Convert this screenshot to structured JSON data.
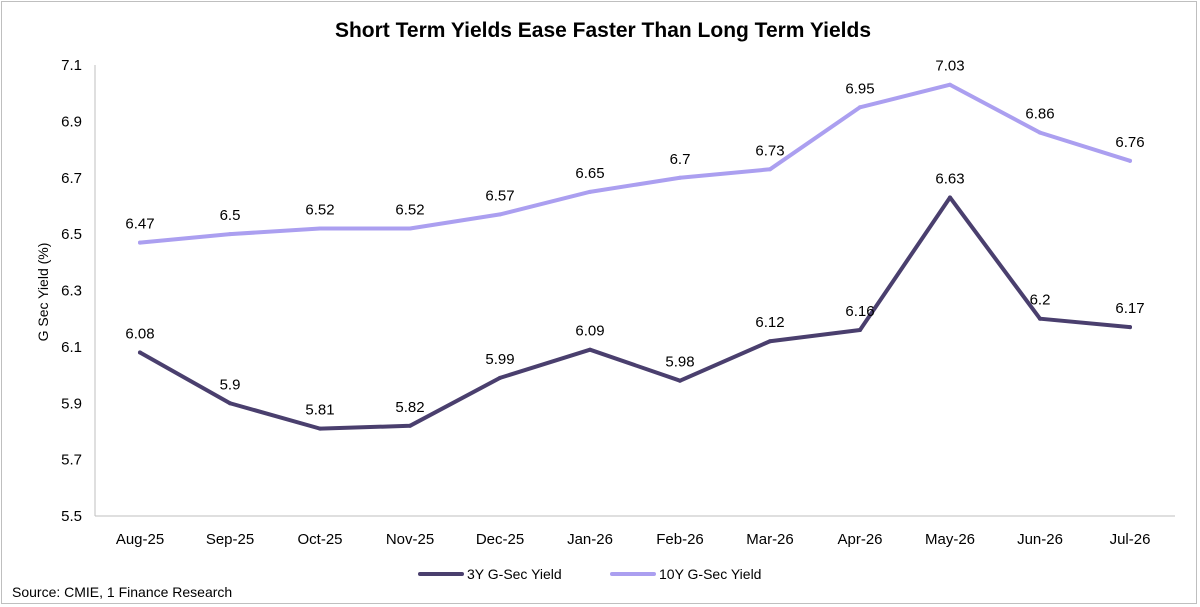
{
  "chart_data": {
    "type": "line",
    "title": "Short Term Yields Ease Faster Than Long Term Yields",
    "ylabel": "G Sec Yield (%)",
    "xlabel": "",
    "ylim": [
      5.5,
      7.1
    ],
    "yticks": [
      "5.5",
      "5.7",
      "5.9",
      "6.1",
      "6.3",
      "6.5",
      "6.7",
      "6.9",
      "7.1"
    ],
    "categories": [
      "Aug-25",
      "Sep-25",
      "Oct-25",
      "Nov-25",
      "Dec-25",
      "Jan-26",
      "Feb-26",
      "Mar-26",
      "Apr-26",
      "May-26",
      "Jun-26",
      "Jul-26"
    ],
    "series": [
      {
        "name": "3Y G-Sec Yield",
        "color": "#4a3f6e",
        "values": [
          6.08,
          5.9,
          5.81,
          5.82,
          5.99,
          6.09,
          5.98,
          6.12,
          6.16,
          6.63,
          6.2,
          6.17
        ],
        "labels": [
          "6.08",
          "5.9",
          "5.81",
          "5.82",
          "5.99",
          "6.09",
          "5.98",
          "6.12",
          "6.16",
          "6.63",
          "6.2",
          "6.17"
        ]
      },
      {
        "name": "10Y G-Sec Yield",
        "color": "#ab9ff0",
        "values": [
          6.47,
          6.5,
          6.52,
          6.52,
          6.57,
          6.65,
          6.7,
          6.73,
          6.95,
          7.03,
          6.86,
          6.76
        ],
        "labels": [
          "6.47",
          "6.5",
          "6.52",
          "6.52",
          "6.57",
          "6.65",
          "6.7",
          "6.73",
          "6.95",
          "7.03",
          "6.86",
          "6.76"
        ]
      }
    ],
    "legend_position": "bottom",
    "grid": false
  },
  "source": "Source: CMIE, 1 Finance Research"
}
